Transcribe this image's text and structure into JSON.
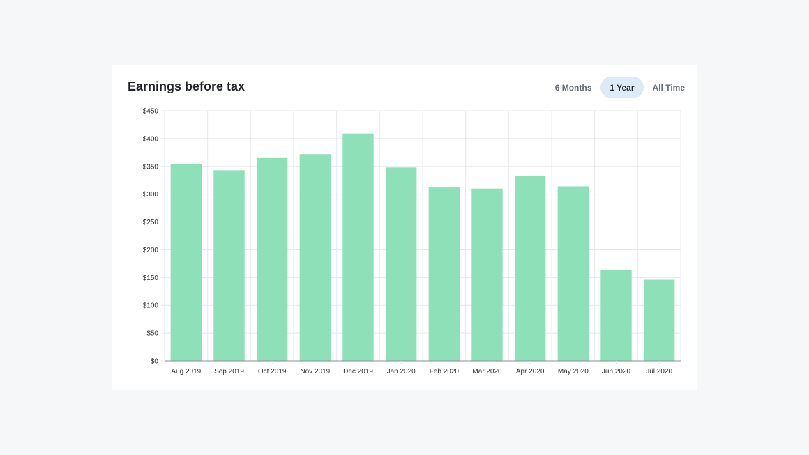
{
  "card": {
    "title": "Earnings before tax",
    "ranges": [
      "6 Months",
      "1 Year",
      "All Time"
    ],
    "active_range": "1 Year"
  },
  "colors": {
    "bar": "#8de0b8",
    "grid": "#e6e8eb",
    "axis": "#8a8f96",
    "active_toggle": "#dcebf7"
  },
  "chart_data": {
    "type": "bar",
    "title": "Earnings before tax",
    "categories": [
      "Aug 2019",
      "Sep 2019",
      "Oct 2019",
      "Nov 2019",
      "Dec 2019",
      "Jan 2020",
      "Feb 2020",
      "Mar 2020",
      "Apr 2020",
      "May 2020",
      "Jun 2020",
      "Jul 2020"
    ],
    "values": [
      354,
      343,
      365,
      372,
      409,
      348,
      312,
      310,
      333,
      314,
      164,
      146
    ],
    "ylim": [
      0,
      450
    ],
    "yticks": [
      0,
      50,
      100,
      150,
      200,
      250,
      300,
      350,
      400,
      450
    ],
    "ytick_labels": [
      "$0",
      "$50",
      "$100",
      "$150",
      "$200",
      "$250",
      "$300",
      "$350",
      "$400",
      "$450"
    ],
    "xlabel": "",
    "ylabel": "",
    "grid": true
  }
}
